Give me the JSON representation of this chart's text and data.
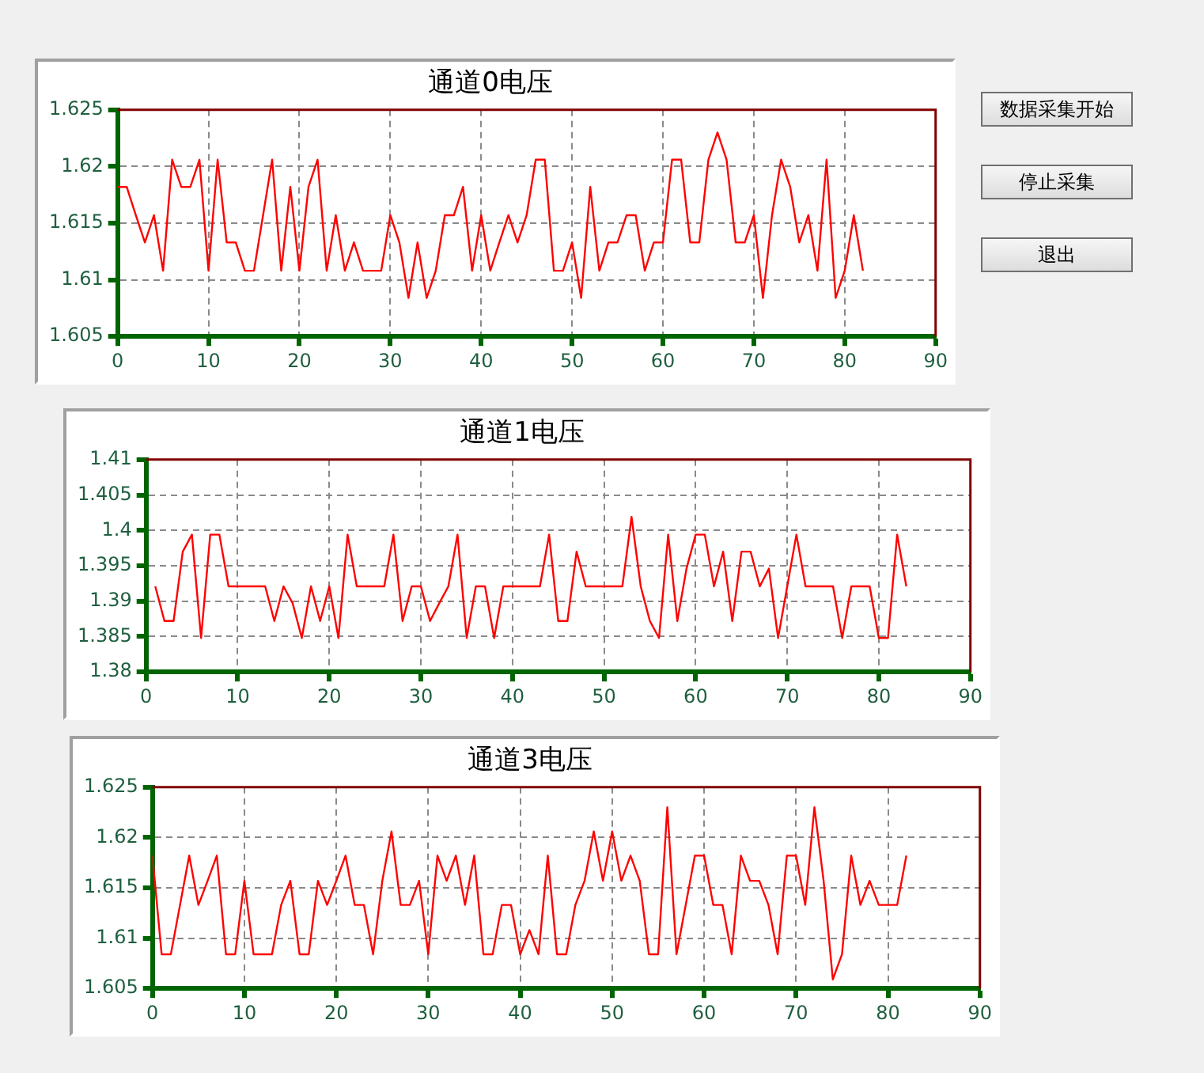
{
  "chart_data": [
    {
      "type": "line",
      "title": "通道0电压",
      "x": [
        0,
        1,
        2,
        3,
        4,
        5,
        6,
        7,
        8,
        9,
        10,
        11,
        12,
        13,
        14,
        15,
        16,
        17,
        18,
        19,
        20,
        21,
        22,
        23,
        24,
        25,
        26,
        27,
        28,
        29,
        30,
        31,
        32,
        33,
        34,
        35,
        36,
        37,
        38,
        39,
        40,
        41,
        42,
        43,
        44,
        45,
        46,
        47,
        48,
        49,
        50,
        51,
        52,
        53,
        54,
        55,
        56,
        57,
        58,
        59,
        60,
        61,
        62,
        63,
        64,
        65,
        66,
        67,
        68,
        69,
        70,
        71,
        72,
        73,
        74,
        75,
        76,
        77,
        78,
        79,
        80,
        81,
        82
      ],
      "series": [
        {
          "color": "#ff0000",
          "values": [
            1.6182,
            1.6182,
            1.6157,
            1.6133,
            1.6157,
            1.6108,
            1.6206,
            1.6182,
            1.6182,
            1.6206,
            1.6108,
            1.6206,
            1.6133,
            1.6133,
            1.6108,
            1.6108,
            1.6157,
            1.6206,
            1.6108,
            1.6182,
            1.6108,
            1.6182,
            1.6206,
            1.6108,
            1.6157,
            1.6108,
            1.6133,
            1.6108,
            1.6108,
            1.6108,
            1.6157,
            1.6133,
            1.6084,
            1.6133,
            1.6084,
            1.6108,
            1.6157,
            1.6157,
            1.6182,
            1.6108,
            1.6157,
            1.6108,
            1.6133,
            1.6157,
            1.6133,
            1.6157,
            1.6206,
            1.6206,
            1.6108,
            1.6108,
            1.6133,
            1.6084,
            1.6182,
            1.6108,
            1.6133,
            1.6133,
            1.6157,
            1.6157,
            1.6108,
            1.6133,
            1.6133,
            1.6206,
            1.6206,
            1.6133,
            1.6133,
            1.6206,
            1.623,
            1.6206,
            1.6133,
            1.6133,
            1.6157,
            1.6084,
            1.6157,
            1.6206,
            1.6182,
            1.6133,
            1.6157,
            1.6108,
            1.6206,
            1.6084,
            1.6108,
            1.6157,
            1.6108
          ]
        }
      ],
      "xlim": [
        0,
        90
      ],
      "xticks": [
        0,
        10,
        20,
        30,
        40,
        50,
        60,
        70,
        80,
        90
      ],
      "ylim": [
        1.605,
        1.625
      ],
      "yticks": [
        1.605,
        1.61,
        1.615,
        1.62,
        1.625
      ],
      "grid": true
    },
    {
      "type": "other",
      "annotations": [
        "数据采集开始",
        "停止采集",
        "退出"
      ]
    },
    {
      "type": "line",
      "title": "通道1电压",
      "x": [
        1,
        2,
        3,
        4,
        5,
        6,
        7,
        8,
        9,
        10,
        11,
        12,
        13,
        14,
        15,
        16,
        17,
        18,
        19,
        20,
        21,
        22,
        23,
        24,
        25,
        26,
        27,
        28,
        29,
        30,
        31,
        32,
        33,
        34,
        35,
        36,
        37,
        38,
        39,
        40,
        41,
        42,
        43,
        44,
        45,
        46,
        47,
        48,
        49,
        50,
        51,
        52,
        53,
        54,
        55,
        56,
        57,
        58,
        59,
        60,
        61,
        62,
        63,
        64,
        65,
        66,
        67,
        68,
        69,
        70,
        71,
        72,
        73,
        74,
        75,
        76,
        77,
        78,
        79,
        80,
        81,
        82,
        83
      ],
      "series": [
        {
          "color": "#ff0000",
          "values": [
            1.3921,
            1.3872,
            1.3872,
            1.397,
            1.3994,
            1.3848,
            1.3994,
            1.3994,
            1.3921,
            1.3921,
            1.3921,
            1.3921,
            1.3921,
            1.3872,
            1.3921,
            1.3897,
            1.3848,
            1.3921,
            1.3872,
            1.3921,
            1.3848,
            1.3994,
            1.3921,
            1.3921,
            1.3921,
            1.3921,
            1.3994,
            1.3872,
            1.3921,
            1.3921,
            1.3872,
            1.3897,
            1.3921,
            1.3994,
            1.3848,
            1.3921,
            1.3921,
            1.3848,
            1.3921,
            1.3921,
            1.3921,
            1.3921,
            1.3921,
            1.3994,
            1.3872,
            1.3872,
            1.397,
            1.3921,
            1.3921,
            1.3921,
            1.3921,
            1.3921,
            1.4019,
            1.3921,
            1.3872,
            1.3848,
            1.3994,
            1.3872,
            1.3946,
            1.3994,
            1.3994,
            1.3921,
            1.397,
            1.3872,
            1.397,
            1.397,
            1.3921,
            1.3946,
            1.3848,
            1.3921,
            1.3994,
            1.3921,
            1.3921,
            1.3921,
            1.3921,
            1.3848,
            1.3921,
            1.3921,
            1.3921,
            1.3848,
            1.3848,
            1.3994,
            1.3921
          ]
        }
      ],
      "xlim": [
        0,
        90
      ],
      "xticks": [
        0,
        10,
        20,
        30,
        40,
        50,
        60,
        70,
        80,
        90
      ],
      "ylim": [
        1.38,
        1.41
      ],
      "yticks": [
        1.38,
        1.385,
        1.39,
        1.395,
        1.4,
        1.405,
        1.41
      ],
      "grid": true
    },
    {
      "type": "line",
      "title": "通道3电压",
      "x": [
        0,
        1,
        2,
        3,
        4,
        5,
        6,
        7,
        8,
        9,
        10,
        11,
        12,
        13,
        14,
        15,
        16,
        17,
        18,
        19,
        20,
        21,
        22,
        23,
        24,
        25,
        26,
        27,
        28,
        29,
        30,
        31,
        32,
        33,
        34,
        35,
        36,
        37,
        38,
        39,
        40,
        41,
        42,
        43,
        44,
        45,
        46,
        47,
        48,
        49,
        50,
        51,
        52,
        53,
        54,
        55,
        56,
        57,
        58,
        59,
        60,
        61,
        62,
        63,
        64,
        65,
        66,
        67,
        68,
        69,
        70,
        71,
        72,
        73,
        74,
        75,
        76,
        77,
        78,
        79,
        80,
        81,
        82
      ],
      "series": [
        {
          "color": "#ff0000",
          "values": [
            1.6182,
            1.6084,
            1.6084,
            1.6133,
            1.6182,
            1.6133,
            1.6157,
            1.6182,
            1.6084,
            1.6084,
            1.6157,
            1.6084,
            1.6084,
            1.6084,
            1.6133,
            1.6157,
            1.6084,
            1.6084,
            1.6157,
            1.6133,
            1.6157,
            1.6182,
            1.6133,
            1.6133,
            1.6084,
            1.6157,
            1.6206,
            1.6133,
            1.6133,
            1.6157,
            1.6084,
            1.6182,
            1.6157,
            1.6182,
            1.6133,
            1.6182,
            1.6084,
            1.6084,
            1.6133,
            1.6133,
            1.6084,
            1.6108,
            1.6084,
            1.6182,
            1.6084,
            1.6084,
            1.6133,
            1.6157,
            1.6206,
            1.6157,
            1.6206,
            1.6157,
            1.6182,
            1.6157,
            1.6084,
            1.6084,
            1.623,
            1.6084,
            1.6133,
            1.6182,
            1.6182,
            1.6133,
            1.6133,
            1.6084,
            1.6182,
            1.6157,
            1.6157,
            1.6133,
            1.6084,
            1.6182,
            1.6182,
            1.6133,
            1.623,
            1.6157,
            1.6059,
            1.6084,
            1.6182,
            1.6133,
            1.6157,
            1.6133,
            1.6133,
            1.6133,
            1.6182
          ]
        }
      ],
      "xlim": [
        0,
        90
      ],
      "xticks": [
        0,
        10,
        20,
        30,
        40,
        50,
        60,
        70,
        80,
        90
      ],
      "ylim": [
        1.605,
        1.625
      ],
      "yticks": [
        1.605,
        1.61,
        1.615,
        1.62,
        1.625
      ],
      "grid": true
    }
  ]
}
